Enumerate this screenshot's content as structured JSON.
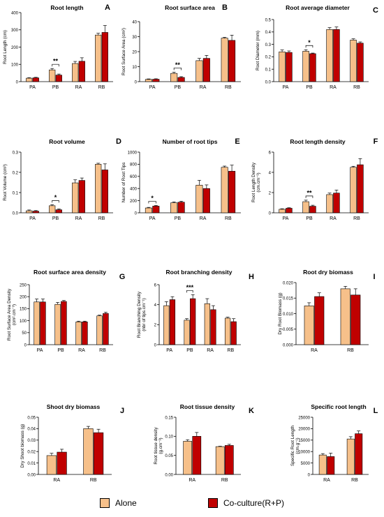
{
  "colors": {
    "alone": "#f6c08a",
    "coculture": "#c00000",
    "axis": "#000000"
  },
  "legend": {
    "alone": "Alone",
    "coculture": "Co-culture(R+P)"
  },
  "chart_data": [
    {
      "panel": "A",
      "type": "bar",
      "title": "Root length",
      "ylabel": "Root Length (cm)",
      "categories": [
        "PA",
        "PB",
        "RA",
        "RB"
      ],
      "ylim": [
        0,
        400
      ],
      "yticks": [
        0,
        100,
        200,
        300,
        400
      ],
      "series": [
        {
          "name": "Alone",
          "values": [
            20,
            68,
            105,
            270
          ],
          "errors": [
            3,
            8,
            12,
            10
          ]
        },
        {
          "name": "Co-culture(R+P)",
          "values": [
            22,
            38,
            118,
            285
          ],
          "errors": [
            3,
            6,
            20,
            40
          ]
        }
      ],
      "annotations": [
        {
          "text": "**",
          "category": "PB"
        }
      ]
    },
    {
      "panel": "B",
      "type": "bar",
      "title": "Root surface area",
      "ylabel": "Root Surface Area (cm²)",
      "categories": [
        "PA",
        "PB",
        "RA",
        "RB"
      ],
      "ylim": [
        0,
        40
      ],
      "yticks": [
        0,
        10,
        20,
        30,
        40
      ],
      "series": [
        {
          "name": "Alone",
          "values": [
            1.5,
            5.5,
            14,
            29
          ],
          "errors": [
            0.3,
            0.8,
            1.5,
            0.5
          ]
        },
        {
          "name": "Co-culture(R+P)",
          "values": [
            1.6,
            2.8,
            15.5,
            27.5
          ],
          "errors": [
            0.3,
            0.5,
            2,
            3.5
          ]
        }
      ],
      "annotations": [
        {
          "text": "**",
          "category": "PB"
        }
      ]
    },
    {
      "panel": "C",
      "type": "bar",
      "title": "Root average diameter",
      "ylabel": "Root Diameter (mm)",
      "categories": [
        "PA",
        "PB",
        "RA",
        "RB"
      ],
      "ylim": [
        0,
        0.5
      ],
      "yticks": [
        0.0,
        0.1,
        0.2,
        0.3,
        0.4,
        0.5
      ],
      "series": [
        {
          "name": "Alone",
          "values": [
            0.24,
            0.245,
            0.42,
            0.335
          ],
          "errors": [
            0.015,
            0.012,
            0.015,
            0.01
          ]
        },
        {
          "name": "Co-culture(R+P)",
          "values": [
            0.235,
            0.225,
            0.42,
            0.31
          ],
          "errors": [
            0.012,
            0.005,
            0.02,
            0.01
          ]
        }
      ],
      "annotations": [
        {
          "text": "*",
          "category": "PB"
        }
      ]
    },
    {
      "panel": "D",
      "type": "bar",
      "title": "Root volume",
      "ylabel": "Root Volume (cm³)",
      "categories": [
        "PA",
        "PB",
        "RA",
        "RB"
      ],
      "ylim": [
        0,
        0.3
      ],
      "yticks": [
        0.0,
        0.1,
        0.2,
        0.3
      ],
      "series": [
        {
          "name": "Alone",
          "values": [
            0.01,
            0.035,
            0.148,
            0.24
          ],
          "errors": [
            0.004,
            0.005,
            0.015,
            0.005
          ]
        },
        {
          "name": "Co-culture(R+P)",
          "values": [
            0.008,
            0.015,
            0.16,
            0.212
          ],
          "errors": [
            0.003,
            0.004,
            0.012,
            0.03
          ]
        }
      ],
      "annotations": [
        {
          "text": "*",
          "category": "PB"
        }
      ]
    },
    {
      "panel": "E",
      "type": "bar",
      "title": "Number of root tips",
      "ylabel": "Number of Root Tips",
      "categories": [
        "PA",
        "PB",
        "RA",
        "RB"
      ],
      "ylim": [
        0,
        1000
      ],
      "yticks": [
        0,
        200,
        400,
        600,
        800,
        1000
      ],
      "series": [
        {
          "name": "Alone",
          "values": [
            80,
            165,
            455,
            750
          ],
          "errors": [
            10,
            15,
            80,
            20
          ]
        },
        {
          "name": "Co-culture(R+P)",
          "values": [
            110,
            175,
            400,
            685
          ],
          "errors": [
            10,
            15,
            60,
            100
          ]
        }
      ],
      "annotations": [
        {
          "text": "*",
          "category": "PA"
        }
      ]
    },
    {
      "panel": "F",
      "type": "bar",
      "title": "Root length density",
      "ylabel": "Root Length Density",
      "ylabel2": "(cm.cm⁻³)",
      "categories": [
        "PA",
        "PB",
        "RA",
        "RB"
      ],
      "ylim": [
        0,
        6
      ],
      "yticks": [
        0,
        2,
        4,
        6
      ],
      "series": [
        {
          "name": "Alone",
          "values": [
            0.35,
            1.1,
            1.8,
            4.5
          ],
          "errors": [
            0.05,
            0.15,
            0.15,
            0.1
          ]
        },
        {
          "name": "Co-culture(R+P)",
          "values": [
            0.45,
            0.65,
            1.95,
            4.75
          ],
          "errors": [
            0.05,
            0.1,
            0.3,
            0.6
          ]
        }
      ],
      "annotations": [
        {
          "text": "**",
          "category": "PB"
        }
      ]
    },
    {
      "panel": "G",
      "type": "bar",
      "title": "Root surface area density",
      "ylabel": "Root Surface Area Density",
      "ylabel2": "(cm².cm⁻³)",
      "categories": [
        "PA",
        "PB",
        "RA",
        "RB"
      ],
      "ylim": [
        0,
        250
      ],
      "yticks": [
        0,
        50,
        100,
        150,
        200,
        250
      ],
      "series": [
        {
          "name": "Alone",
          "values": [
            178,
            168,
            95,
            120
          ],
          "errors": [
            12,
            8,
            3,
            3
          ]
        },
        {
          "name": "Co-culture(R+P)",
          "values": [
            178,
            180,
            95,
            130
          ],
          "errors": [
            12,
            4,
            3,
            5
          ]
        }
      ],
      "annotations": []
    },
    {
      "panel": "H",
      "type": "bar",
      "title": "Root branching density",
      "ylabel": "Root Branching Density",
      "ylabel2": "(nbr of tips.cm⁻¹)",
      "categories": [
        "PA",
        "PB",
        "RA",
        "RB"
      ],
      "ylim": [
        0,
        6
      ],
      "yticks": [
        0,
        2,
        4,
        6
      ],
      "series": [
        {
          "name": "Alone",
          "values": [
            3.9,
            2.45,
            4.1,
            2.65
          ],
          "errors": [
            0.4,
            0.15,
            0.5,
            0.1
          ]
        },
        {
          "name": "Co-culture(R+P)",
          "values": [
            4.5,
            4.6,
            3.5,
            2.3
          ],
          "errors": [
            0.3,
            0.4,
            0.4,
            0.3
          ]
        }
      ],
      "annotations": [
        {
          "text": "***",
          "category": "PB"
        }
      ]
    },
    {
      "panel": "I",
      "type": "bar",
      "title": "Root dry biomass",
      "ylabel": "Dry Root Biomass (g)",
      "categories": [
        "RA",
        "RB"
      ],
      "ylim": [
        0,
        0.02
      ],
      "yticks": [
        0.0,
        0.005,
        0.01,
        0.015,
        0.02
      ],
      "series": [
        {
          "name": "Alone",
          "values": [
            0.0125,
            0.018
          ],
          "errors": [
            0.001,
            0.0008
          ]
        },
        {
          "name": "Co-culture(R+P)",
          "values": [
            0.0155,
            0.016
          ],
          "errors": [
            0.0012,
            0.002
          ]
        }
      ],
      "annotations": []
    },
    {
      "panel": "J",
      "type": "bar",
      "title": "Shoot dry biomass",
      "ylabel": "Dry Shoot biomass (g)",
      "categories": [
        "RA",
        "RB"
      ],
      "ylim": [
        0,
        0.05
      ],
      "yticks": [
        0.0,
        0.01,
        0.02,
        0.03,
        0.04,
        0.05
      ],
      "series": [
        {
          "name": "Alone",
          "values": [
            0.0165,
            0.04
          ],
          "errors": [
            0.002,
            0.002
          ]
        },
        {
          "name": "Co-culture(R+P)",
          "values": [
            0.0195,
            0.0365
          ],
          "errors": [
            0.0025,
            0.003
          ]
        }
      ],
      "annotations": []
    },
    {
      "panel": "K",
      "type": "bar",
      "title": "Root tissue density",
      "ylabel": "Root tissue density",
      "ylabel2": "(g.cm⁻³)",
      "categories": [
        "RA",
        "RB"
      ],
      "ylim": [
        0,
        0.15
      ],
      "yticks": [
        0.0,
        0.05,
        0.1,
        0.15
      ],
      "series": [
        {
          "name": "Alone",
          "values": [
            0.087,
            0.073
          ],
          "errors": [
            0.004,
            0.001
          ]
        },
        {
          "name": "Co-culture(R+P)",
          "values": [
            0.1,
            0.076
          ],
          "errors": [
            0.01,
            0.003
          ]
        }
      ],
      "annotations": []
    },
    {
      "panel": "L",
      "type": "bar",
      "title": "Specific root length",
      "ylabel": "Specific Root Length",
      "ylabel2": "(cm.g⁻¹)",
      "categories": [
        "RA",
        "RB"
      ],
      "ylim": [
        0,
        25000
      ],
      "yticks": [
        0,
        5000,
        10000,
        15000,
        20000,
        25000
      ],
      "series": [
        {
          "name": "Alone",
          "values": [
            8500,
            15500
          ],
          "errors": [
            600,
            1000
          ]
        },
        {
          "name": "Co-culture(R+P)",
          "values": [
            7800,
            17800
          ],
          "errors": [
            1500,
            1200
          ]
        }
      ],
      "annotations": []
    }
  ]
}
